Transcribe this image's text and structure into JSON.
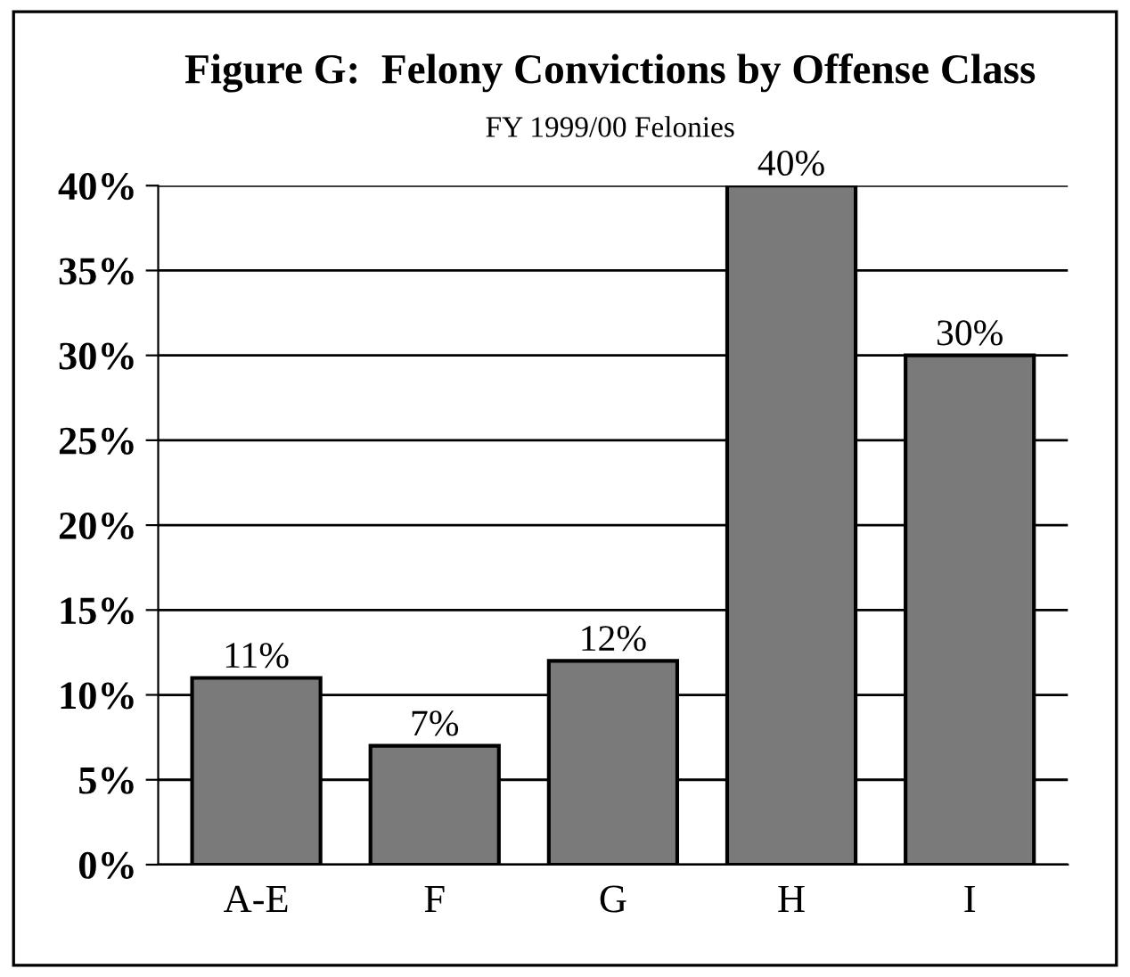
{
  "chart_data": {
    "type": "bar",
    "title": "Figure G:  Felony Convictions by Offense Class",
    "subtitle": "FY 1999/00 Felonies",
    "categories": [
      "A-E",
      "F",
      "G",
      "H",
      "I"
    ],
    "values": [
      11,
      7,
      12,
      40,
      30
    ],
    "value_labels": [
      "11%",
      "7%",
      "12%",
      "40%",
      "30%"
    ],
    "color": "#7a7a7a",
    "ylim": [
      0,
      40
    ],
    "yticks": [
      {
        "value": 0,
        "label": "0%"
      },
      {
        "value": 5,
        "label": "5%"
      },
      {
        "value": 10,
        "label": "10%"
      },
      {
        "value": 15,
        "label": "15%"
      },
      {
        "value": 20,
        "label": "20%"
      },
      {
        "value": 25,
        "label": "25%"
      },
      {
        "value": 30,
        "label": "30%"
      },
      {
        "value": 35,
        "label": "35%"
      },
      {
        "value": 40,
        "label": "40%"
      }
    ],
    "grid": "y"
  }
}
